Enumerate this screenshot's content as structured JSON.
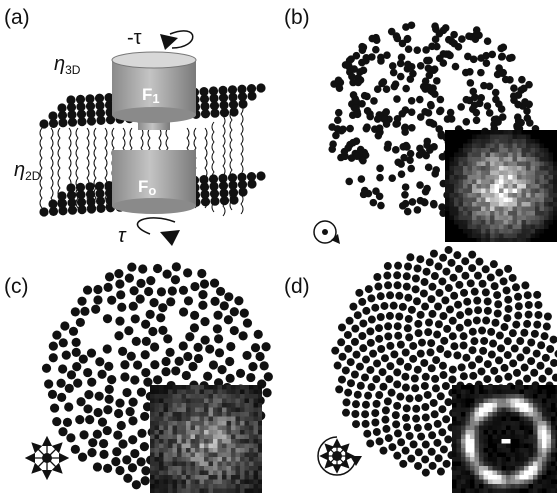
{
  "panels": [
    {
      "label": "(a)"
    },
    {
      "label": "(b)"
    },
    {
      "label": "(c)"
    },
    {
      "label": "(d)"
    }
  ],
  "schematic": {
    "top_torque": "-τ",
    "bottom_torque": "τ",
    "viscosity_3d": {
      "symbol": "η",
      "subscript": "3D"
    },
    "viscosity_2d": {
      "symbol": "η",
      "subscript": "2D"
    },
    "upper_rotor": {
      "letter": "F",
      "subscript": "1"
    },
    "lower_rotor": {
      "letter": "F",
      "subscript": "o"
    }
  }
}
